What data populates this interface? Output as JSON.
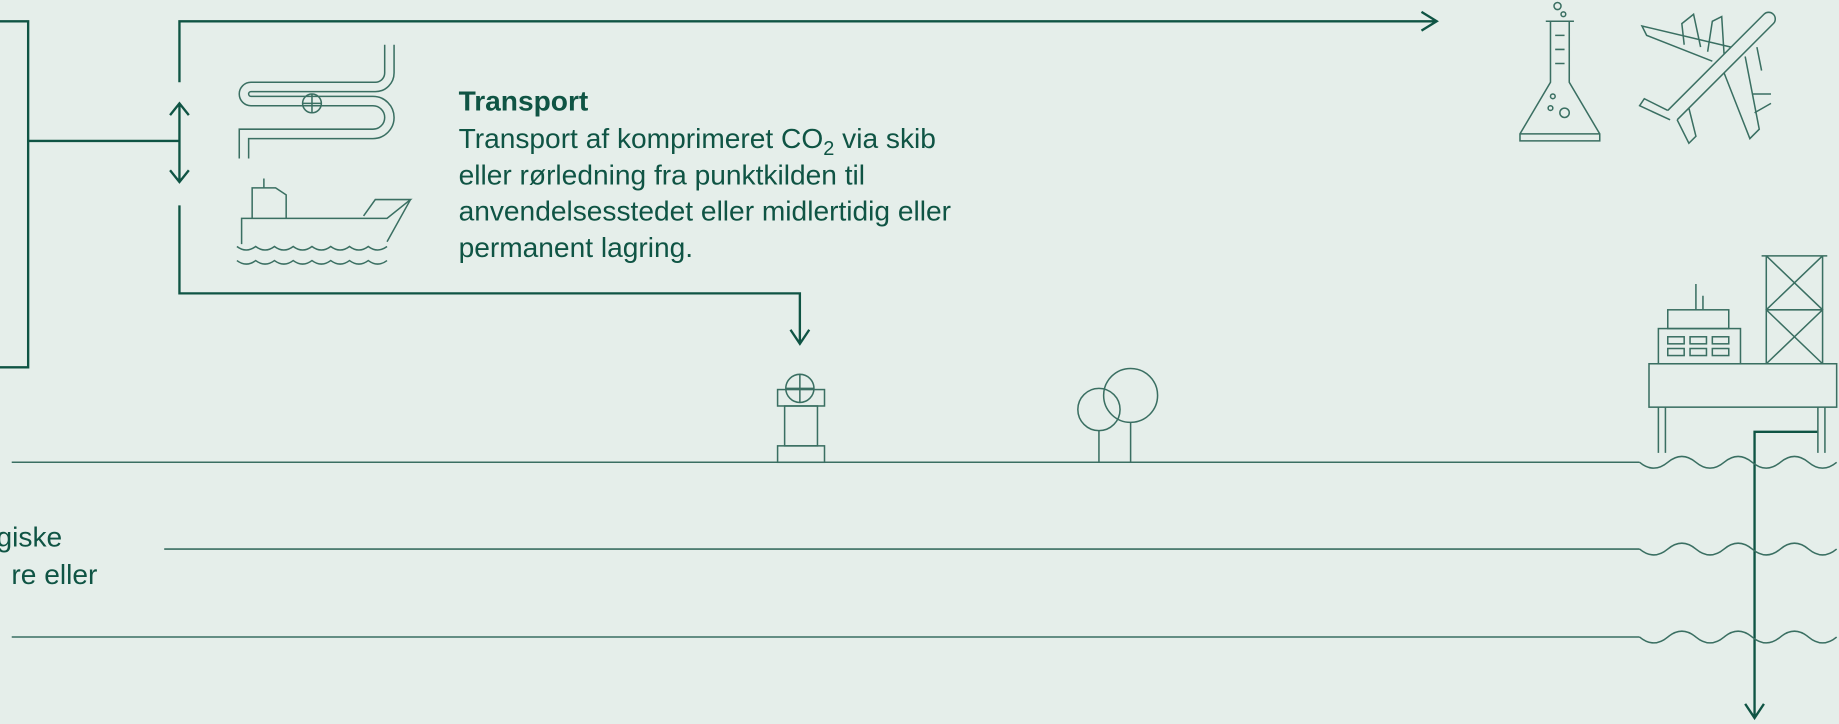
{
  "transport": {
    "title": "Transport",
    "lines": [
      "Transport af komprimeret CO",
      "eller rørledning fra punktkilden til",
      "anvendelsesstedet eller midlertidig eller",
      "permanent lagring."
    ],
    "subscript": "2",
    "line1_tail": " via skib"
  },
  "left_text": {
    "lines": [
      "giske",
      "re eller"
    ]
  }
}
